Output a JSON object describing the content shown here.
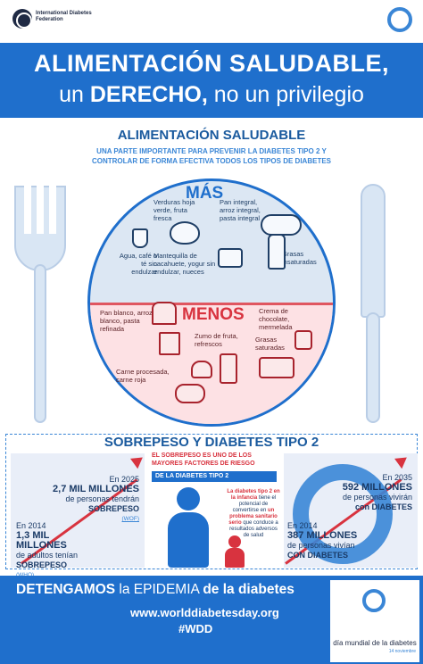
{
  "header": {
    "org_name": "International Diabetes Federation",
    "title_line1": "ALIMENTACIÓN SALUDABLE,",
    "title_line2_a": "un",
    "title_line2_b": "DERECHO,",
    "title_line2_c": "no un privilegio"
  },
  "plate_section": {
    "heading": "ALIMENTACIÓN SALUDABLE",
    "desc_line1": "UNA PARTE IMPORTANTE PARA PREVENIR LA DIABETES TIPO 2 Y",
    "desc_line2": "CONTROLAR DE FORMA EFECTIVA TODOS LOS TIPOS DE DIABETES",
    "more_label": "MÁS",
    "less_label": "MENOS",
    "more_items": [
      "Verduras hoja verde, fruta fresca",
      "Pan integral, arroz integral, pasta integral",
      "Agua, café o té sin endulzar",
      "Mantequilla de cacahuete, yogur sin endulzar, nueces",
      "Grasas insaturadas"
    ],
    "less_items": [
      "Pan blanco, arroz blanco, pasta refinada",
      "Crema de chocolate, mermelada",
      "Zumo de fruta, refrescos",
      "Grasas saturadas",
      "Carne procesada, carne roja"
    ]
  },
  "overweight_section": {
    "heading": "SOBREPESO Y DIABETES TIPO 2",
    "left_2025_year": "En 2025",
    "left_2025_amount": "2,7 MIL MILLONES",
    "left_2025_text": "de personas tendrán",
    "left_2025_cond": "SOBREPESO",
    "left_2025_src": "(WOF)",
    "left_2014_year": "En 2014",
    "left_2014_amount": "1,3 MIL MILLONES",
    "left_2014_text": "de adultos tenían",
    "left_2014_cond": "SOBREPESO",
    "left_2014_src": "(WHO)",
    "mid_head": "EL SOBREPESO ES UNO DE LOS MAYORES FACTORES DE RIESGO",
    "mid_band": "DE LA DIABETES TIPO 2",
    "mid_red": "La diabetes tipo 2 en la infancia",
    "mid_text1": "tiene el potencial de convertirse en",
    "mid_red2": "un problema sanitario serio",
    "mid_text2": "que conduce a resultados adversos de salud",
    "right_2035_year": "En 2035",
    "right_2035_amount": "592 MILLONES",
    "right_2035_text": "de personas vivirán",
    "right_2035_cond": "con DIABETES",
    "right_2014_year": "En 2014",
    "right_2014_amount": "387 MILLONES",
    "right_2014_text": "de personas vivían",
    "right_2014_cond": "CON DIABETES"
  },
  "footer": {
    "title_a": "DETENGAMOS",
    "title_b": "la",
    "title_c": "EPIDEMIA",
    "title_d": "de la diabetes",
    "url": "www.worlddiabetesday.org",
    "hashtag": "#WDD",
    "wdd_name": "día mundial de la diabetes",
    "wdd_date": "14 noviembre"
  },
  "colors": {
    "primary_blue": "#1f6fcc",
    "light_blue": "#3a86d6",
    "red": "#d8333f",
    "navy": "#1f2a44"
  }
}
